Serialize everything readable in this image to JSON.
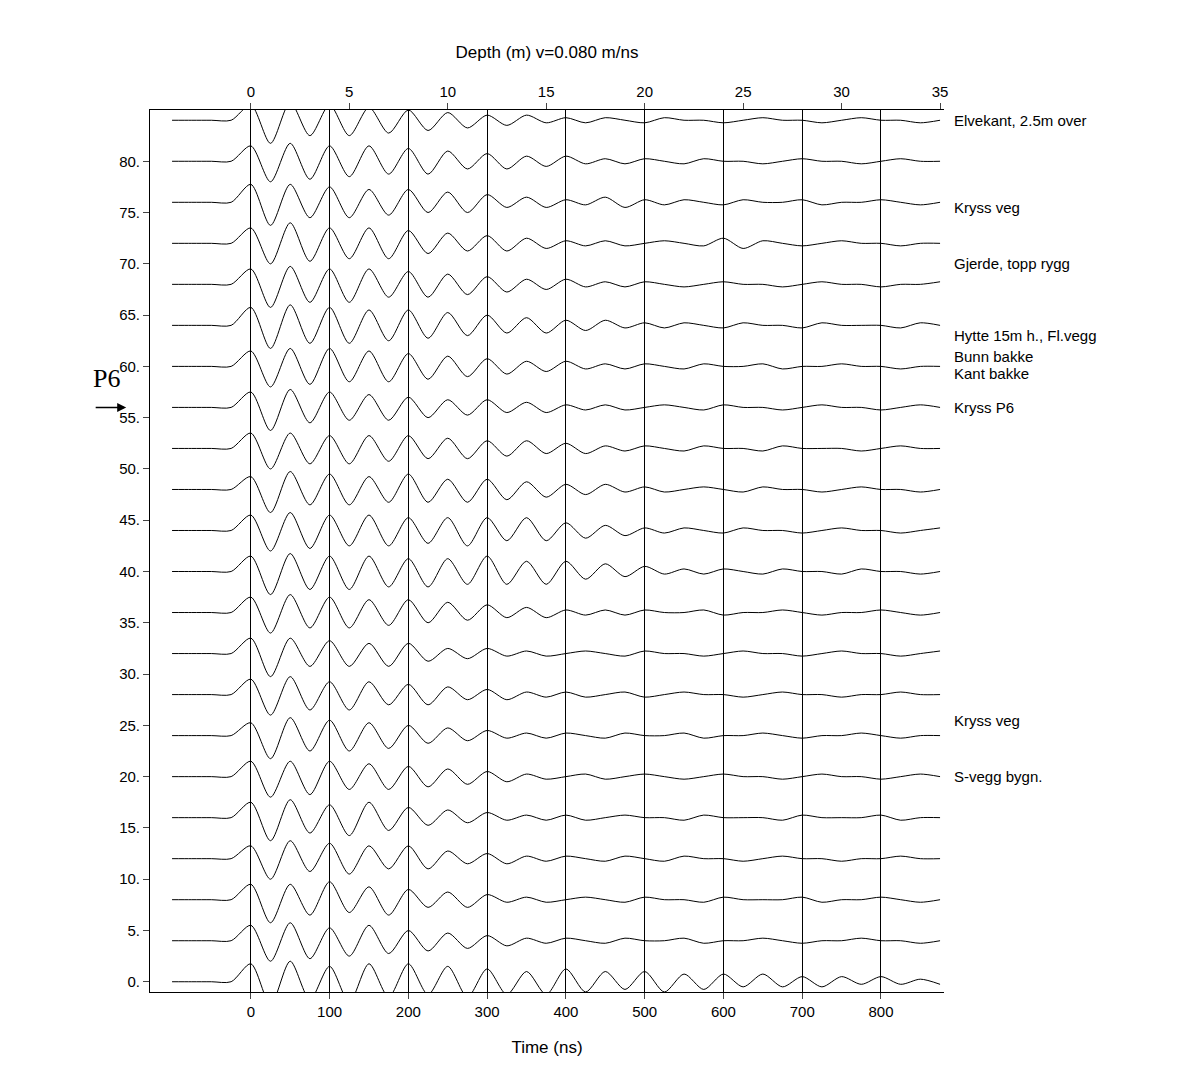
{
  "chart_data": {
    "type": "wiggle",
    "xlabel": "Time (ns)",
    "x2label": "Depth (m) v=0.080 m/ns",
    "xlim": [
      -128,
      880
    ],
    "xticks": [
      0,
      100,
      200,
      300,
      400,
      500,
      600,
      700,
      800
    ],
    "x2lim": [
      -5.12,
      35.2
    ],
    "x2ticks": [
      0,
      5,
      10,
      15,
      20,
      25,
      30,
      35
    ],
    "ylim": [
      -1,
      85
    ],
    "yticks": [
      {
        "value": 0,
        "label": "0."
      },
      {
        "value": 5,
        "label": "5."
      },
      {
        "value": 10,
        "label": "10."
      },
      {
        "value": 15,
        "label": "15."
      },
      {
        "value": 20,
        "label": "20."
      },
      {
        "value": 25,
        "label": "25."
      },
      {
        "value": 30,
        "label": "30."
      },
      {
        "value": 35,
        "label": "35."
      },
      {
        "value": 40,
        "label": "40."
      },
      {
        "value": 45,
        "label": "45."
      },
      {
        "value": 50,
        "label": "50."
      },
      {
        "value": 55,
        "label": "55."
      },
      {
        "value": 60,
        "label": "60."
      },
      {
        "value": 65,
        "label": "65."
      },
      {
        "value": 70,
        "label": "70."
      },
      {
        "value": 75,
        "label": "75."
      },
      {
        "value": 80,
        "label": "80."
      }
    ],
    "grid": true,
    "color": "#000000",
    "x": [
      -100,
      -75,
      -50,
      -25,
      0,
      25,
      50,
      75,
      100,
      125,
      150,
      175,
      200,
      225,
      250,
      275,
      300,
      325,
      350,
      375,
      400,
      425,
      450,
      475,
      500,
      525,
      550,
      575,
      600,
      625,
      650,
      675,
      700,
      725,
      750,
      775,
      800,
      825,
      850,
      875
    ],
    "traces": [
      {
        "position": 0,
        "values": [
          0,
          0,
          0,
          0,
          7,
          -9,
          8,
          -7,
          6,
          -8,
          7,
          -6,
          7,
          -5,
          6,
          -6,
          5,
          -5,
          4,
          -5,
          5,
          -4,
          4,
          -3,
          4,
          -4,
          3,
          -3,
          3,
          -2,
          3,
          -2,
          2,
          -2,
          2,
          -1,
          2,
          -1,
          1,
          -1
        ]
      },
      {
        "position": 4,
        "values": [
          0,
          0,
          0,
          0,
          6,
          -8,
          7,
          -7,
          5,
          -6,
          6,
          -5,
          4,
          -4,
          3,
          -3,
          2,
          -2,
          1,
          -1,
          1,
          0,
          -1,
          1,
          0,
          0,
          1,
          -1,
          0,
          0,
          1,
          0,
          -1,
          0,
          0,
          1,
          0,
          0,
          -1,
          0
        ]
      },
      {
        "position": 8,
        "values": [
          0,
          0,
          0,
          0,
          6,
          -9,
          6,
          -6,
          7,
          -5,
          5,
          -6,
          4,
          -3,
          3,
          -3,
          2,
          -1,
          1,
          -1,
          0,
          1,
          0,
          -1,
          1,
          0,
          0,
          -1,
          1,
          0,
          0,
          0,
          1,
          -1,
          0,
          0,
          1,
          0,
          -1,
          0
        ]
      },
      {
        "position": 12,
        "values": [
          0,
          0,
          0,
          0,
          5,
          -8,
          7,
          -5,
          6,
          -6,
          5,
          -4,
          5,
          -4,
          3,
          -2,
          2,
          -2,
          1,
          -1,
          1,
          0,
          -1,
          1,
          0,
          -1,
          1,
          0,
          0,
          -1,
          0,
          1,
          0,
          0,
          -1,
          0,
          0,
          1,
          0,
          0
        ]
      },
      {
        "position": 16,
        "values": [
          0,
          0,
          0,
          0,
          6,
          -9,
          7,
          -6,
          5,
          -7,
          6,
          -5,
          4,
          -3,
          3,
          -2,
          2,
          -1,
          1,
          -1,
          1,
          -1,
          0,
          1,
          0,
          0,
          -1,
          1,
          0,
          0,
          0,
          -1,
          1,
          0,
          0,
          0,
          1,
          -1,
          0,
          0
        ]
      },
      {
        "position": 20,
        "values": [
          0,
          0,
          0,
          0,
          6,
          -8,
          6,
          -7,
          6,
          -5,
          5,
          -5,
          4,
          -4,
          3,
          -3,
          2,
          -2,
          1,
          -1,
          0,
          1,
          -1,
          0,
          1,
          0,
          -1,
          0,
          1,
          0,
          0,
          -1,
          0,
          1,
          0,
          0,
          -1,
          0,
          1,
          0
        ]
      },
      {
        "position": 24,
        "values": [
          0,
          0,
          0,
          0,
          5,
          -9,
          7,
          -6,
          6,
          -6,
          5,
          -5,
          4,
          -3,
          3,
          -2,
          2,
          -1,
          1,
          -1,
          1,
          0,
          -1,
          1,
          0,
          0,
          1,
          -1,
          0,
          0,
          1,
          0,
          -1,
          0,
          0,
          1,
          0,
          -1,
          0,
          0
        ]
      },
      {
        "position": 28,
        "values": [
          0,
          0,
          0,
          0,
          6,
          -8,
          7,
          -6,
          5,
          -6,
          5,
          -4,
          4,
          -4,
          3,
          -2,
          2,
          -2,
          1,
          -1,
          1,
          -1,
          0,
          1,
          -1,
          0,
          1,
          0,
          0,
          -1,
          0,
          1,
          0,
          0,
          -1,
          0,
          0,
          1,
          0,
          0
        ]
      },
      {
        "position": 32,
        "values": [
          0,
          0,
          0,
          0,
          6,
          -9,
          6,
          -5,
          5,
          -5,
          4,
          -5,
          4,
          -3,
          2,
          -2,
          2,
          -1,
          1,
          -1,
          0,
          1,
          0,
          -1,
          1,
          0,
          0,
          -1,
          0,
          1,
          0,
          0,
          -1,
          0,
          1,
          0,
          0,
          -1,
          0,
          1
        ]
      },
      {
        "position": 36,
        "values": [
          0,
          0,
          0,
          0,
          6,
          -8,
          7,
          -6,
          6,
          -6,
          5,
          -5,
          5,
          -4,
          4,
          -3,
          3,
          -2,
          2,
          -2,
          1,
          -1,
          1,
          -1,
          1,
          0,
          0,
          1,
          -1,
          0,
          0,
          1,
          0,
          -1,
          0,
          0,
          1,
          0,
          -1,
          0
        ]
      },
      {
        "position": 40,
        "values": [
          0,
          0,
          0,
          0,
          6,
          -9,
          7,
          -7,
          6,
          -7,
          6,
          -6,
          5,
          -6,
          5,
          -5,
          6,
          -5,
          4,
          -5,
          4,
          -3,
          3,
          -2,
          2,
          -1,
          1,
          -1,
          1,
          0,
          -1,
          1,
          0,
          0,
          -1,
          1,
          0,
          0,
          -1,
          0
        ]
      },
      {
        "position": 44,
        "values": [
          0,
          0,
          0,
          0,
          6,
          -8,
          7,
          -7,
          6,
          -6,
          6,
          -6,
          5,
          -5,
          5,
          -6,
          5,
          -4,
          5,
          -4,
          3,
          -3,
          2,
          -2,
          1,
          -1,
          1,
          0,
          -1,
          1,
          0,
          0,
          -1,
          0,
          1,
          0,
          0,
          -1,
          0,
          1
        ]
      },
      {
        "position": 48,
        "values": [
          0,
          0,
          0,
          0,
          5,
          -9,
          7,
          -6,
          6,
          -6,
          5,
          -5,
          6,
          -5,
          4,
          -5,
          4,
          -4,
          3,
          -3,
          2,
          -2,
          2,
          -1,
          1,
          -1,
          0,
          1,
          0,
          -1,
          1,
          0,
          0,
          -1,
          0,
          1,
          0,
          0,
          -1,
          0
        ]
      },
      {
        "position": 52,
        "values": [
          0,
          0,
          0,
          0,
          6,
          -8,
          6,
          -6,
          5,
          -6,
          5,
          -5,
          5,
          -4,
          4,
          -4,
          3,
          -3,
          3,
          -2,
          2,
          -2,
          1,
          -1,
          1,
          0,
          -1,
          1,
          0,
          0,
          -1,
          1,
          0,
          0,
          0,
          -1,
          0,
          1,
          0,
          0
        ]
      },
      {
        "position": 56,
        "values": [
          0,
          0,
          0,
          0,
          6,
          -9,
          7,
          -6,
          6,
          -5,
          5,
          -5,
          4,
          -4,
          3,
          -3,
          3,
          -2,
          2,
          -2,
          1,
          -1,
          1,
          -1,
          0,
          1,
          0,
          -1,
          1,
          0,
          0,
          -1,
          0,
          1,
          0,
          0,
          -1,
          0,
          1,
          0
        ]
      },
      {
        "position": 60,
        "values": [
          0,
          0,
          0,
          0,
          6,
          -8,
          7,
          -7,
          7,
          -6,
          6,
          -6,
          5,
          -5,
          4,
          -4,
          3,
          -3,
          2,
          -2,
          2,
          -1,
          1,
          -1,
          1,
          0,
          -1,
          1,
          0,
          0,
          1,
          -1,
          0,
          0,
          1,
          0,
          0,
          -1,
          0,
          0
        ]
      },
      {
        "position": 64,
        "values": [
          0,
          0,
          0,
          0,
          7,
          -9,
          8,
          -7,
          7,
          -7,
          6,
          -6,
          6,
          -5,
          5,
          -4,
          4,
          -3,
          3,
          -3,
          2,
          -2,
          2,
          -1,
          1,
          -1,
          1,
          0,
          -1,
          1,
          0,
          0,
          -1,
          1,
          0,
          0,
          0,
          -1,
          1,
          0
        ]
      },
      {
        "position": 68,
        "values": [
          0,
          0,
          0,
          0,
          6,
          -9,
          7,
          -7,
          6,
          -7,
          6,
          -5,
          5,
          -5,
          4,
          -4,
          3,
          -3,
          2,
          -2,
          2,
          -1,
          1,
          -1,
          1,
          0,
          -1,
          0,
          1,
          0,
          0,
          -1,
          0,
          1,
          0,
          0,
          -1,
          0,
          0,
          1
        ]
      },
      {
        "position": 72,
        "values": [
          0,
          0,
          0,
          0,
          6,
          -8,
          8,
          -7,
          6,
          -6,
          6,
          -6,
          5,
          -4,
          4,
          -3,
          3,
          -3,
          2,
          -2,
          1,
          -1,
          1,
          -1,
          0,
          1,
          0,
          -1,
          2,
          -2,
          1,
          0,
          -1,
          0,
          1,
          0,
          0,
          -1,
          0,
          0
        ]
      },
      {
        "position": 76,
        "values": [
          0,
          0,
          0,
          0,
          7,
          -9,
          7,
          -6,
          6,
          -6,
          5,
          -5,
          5,
          -4,
          4,
          -4,
          3,
          -2,
          2,
          -2,
          1,
          -1,
          2,
          -2,
          1,
          -1,
          1,
          0,
          -1,
          1,
          0,
          0,
          1,
          -1,
          0,
          0,
          1,
          0,
          -1,
          0
        ]
      },
      {
        "position": 80,
        "values": [
          0,
          0,
          0,
          0,
          6,
          -8,
          7,
          -7,
          6,
          -6,
          6,
          -5,
          5,
          -5,
          4,
          -3,
          3,
          -3,
          2,
          -2,
          2,
          -1,
          1,
          -1,
          1,
          0,
          -1,
          1,
          0,
          0,
          -1,
          0,
          1,
          0,
          0,
          -1,
          0,
          1,
          0,
          0
        ]
      },
      {
        "position": 84,
        "values": [
          0,
          0,
          0,
          0,
          6,
          -9,
          7,
          -6,
          6,
          -6,
          5,
          -5,
          4,
          -4,
          3,
          -3,
          2,
          -2,
          2,
          -1,
          1,
          -1,
          1,
          0,
          -1,
          1,
          0,
          0,
          -1,
          0,
          1,
          0,
          0,
          -1,
          0,
          1,
          0,
          0,
          -1,
          0
        ]
      }
    ],
    "annotations": [
      {
        "text": "Elvekant, 2.5m over",
        "y": 84
      },
      {
        "text": "Kryss veg",
        "y": 75.5
      },
      {
        "text": "Gjerde, topp rygg",
        "y": 70
      },
      {
        "text": "Hytte 15m h., Fl.vegg",
        "y": 63
      },
      {
        "text": "Bunn bakke",
        "y": 61
      },
      {
        "text": "Kant bakke",
        "y": 59.3
      },
      {
        "text": "Kryss P6",
        "y": 56
      },
      {
        "text": "Kryss veg",
        "y": 25.5
      },
      {
        "text": "S-vegg bygn.",
        "y": 20
      }
    ],
    "marker_label": {
      "text": "P6",
      "y": 56
    }
  }
}
